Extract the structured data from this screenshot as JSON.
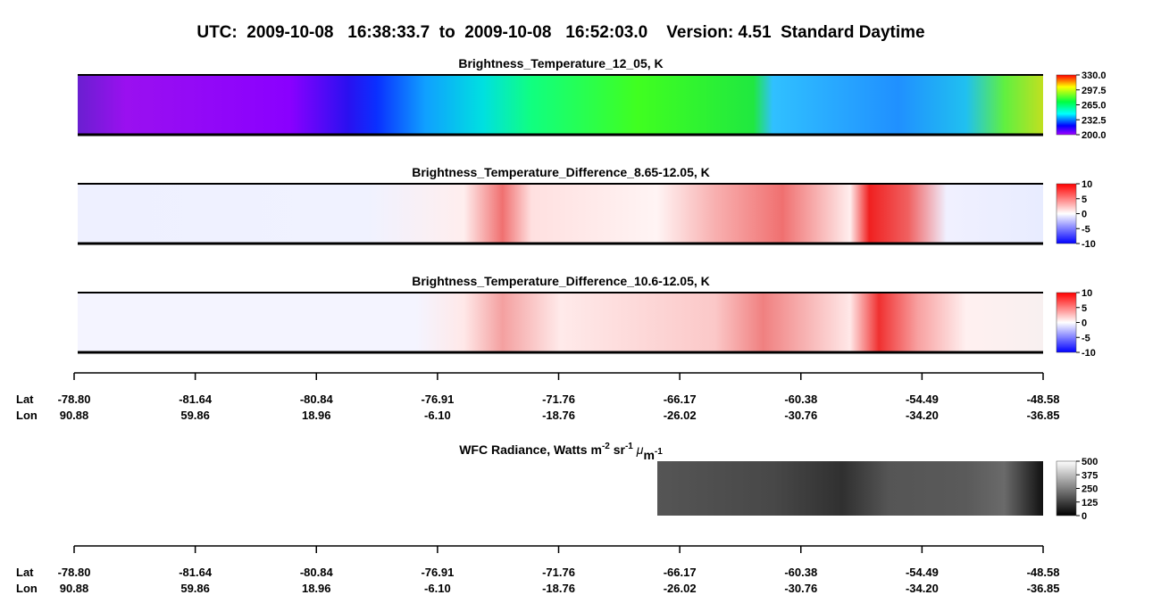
{
  "header": {
    "title": "UTC:  2009-10-08   16:38:33.7  to  2009-10-08   16:52:03.0    Version: 4.51  Standard Daytime"
  },
  "panels": [
    {
      "title": "Brightness_Temperature_12_05, K",
      "colorbar": [
        "330.0",
        "297.5",
        "265.0",
        "232.5",
        "200.0"
      ]
    },
    {
      "title": "Brightness_Temperature_Difference_8.65-12.05, K",
      "colorbar": [
        "10",
        "5",
        "0",
        "-5",
        "-10"
      ]
    },
    {
      "title": "Brightness_Temperature_Difference_10.6-12.05, K",
      "colorbar": [
        "10",
        "5",
        "0",
        "-5",
        "-10"
      ]
    }
  ],
  "axis": {
    "row_labels": [
      "Lat",
      "Lon"
    ],
    "lat": [
      "-78.80",
      "-81.64",
      "-80.84",
      "-76.91",
      "-71.76",
      "-66.17",
      "-60.38",
      "-54.49",
      "-48.58"
    ],
    "lon": [
      "90.88",
      "59.86",
      "18.96",
      "-6.10",
      "-18.76",
      "-26.02",
      "-30.76",
      "-34.20",
      "-36.85"
    ]
  },
  "wfc": {
    "title_parts": [
      "WFC Radiance, Watts m",
      "-2",
      " sr",
      "-1",
      " μ",
      "m",
      "-1"
    ],
    "colorbar": [
      "500",
      "375",
      "250",
      "125",
      "0"
    ]
  }
}
